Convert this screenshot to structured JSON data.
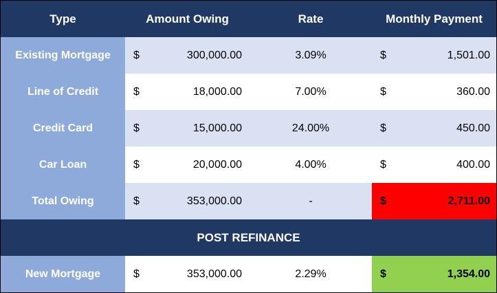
{
  "colors": {
    "header_bg": "#1f3864",
    "type_column_bg": "#8eaadb",
    "band_light": "#dae1f2",
    "band_white": "#ffffff",
    "total_highlight": "#ff0000",
    "new_payment_highlight": "#92d050"
  },
  "header": {
    "type": "Type",
    "amount": "Amount Owing",
    "rate": "Rate",
    "payment": "Monthly Payment"
  },
  "rows": [
    {
      "type": "Existing Mortgage",
      "currency": "$",
      "amount": "300,000.00",
      "rate": "3.09%",
      "pay_currency": "$",
      "payment": "1,501.00"
    },
    {
      "type": "Line of Credit",
      "currency": "$",
      "amount": "18,000.00",
      "rate": "7.00%",
      "pay_currency": "$",
      "payment": "360.00"
    },
    {
      "type": "Credit Card",
      "currency": "$",
      "amount": "15,000.00",
      "rate": "24.00%",
      "pay_currency": "$",
      "payment": "450.00"
    },
    {
      "type": "Car Loan",
      "currency": "$",
      "amount": "20,000.00",
      "rate": "4.00%",
      "pay_currency": "$",
      "payment": "400.00"
    }
  ],
  "total": {
    "type": "Total Owing",
    "currency": "$",
    "amount": "353,000.00",
    "rate": "-",
    "pay_currency": "$",
    "payment": "2,711.00"
  },
  "section_title": "POST REFINANCE",
  "new_mortgage": {
    "type": "New Mortgage",
    "currency": "$",
    "amount": "353,000.00",
    "rate": "2.29%",
    "pay_currency": "$",
    "payment": "1,354.00"
  }
}
